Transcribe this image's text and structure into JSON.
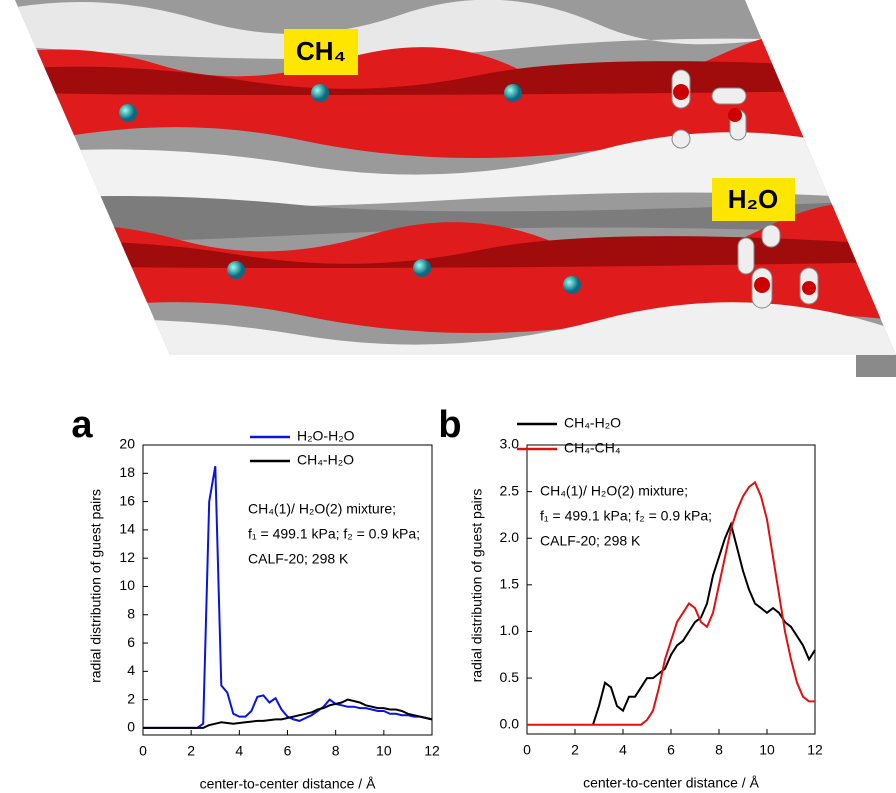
{
  "image_labels": [
    "CH₄",
    "H₂O"
  ],
  "chart_data": [
    {
      "type": "line",
      "panel_label": "a",
      "x_label": "center-to-center distance / Å",
      "y_label": "radial distribution of guest pairs",
      "annotations": [
        "CH₄(1)/ H₂O(2) mixture;",
        "f₁ = 499.1 kPa; f₂ = 0.9 kPa;",
        "CALF-20; 298 K"
      ],
      "xlim": [
        0,
        12
      ],
      "xticks": [
        0,
        2,
        4,
        6,
        8,
        10,
        12
      ],
      "ylim": [
        -0.5,
        20
      ],
      "yticks": [
        0,
        2,
        4,
        6,
        8,
        10,
        12,
        14,
        16,
        18,
        20
      ],
      "x": [
        0,
        0.25,
        0.5,
        0.75,
        1,
        1.25,
        1.5,
        1.75,
        2,
        2.25,
        2.5,
        2.75,
        3,
        3.25,
        3.5,
        3.75,
        4,
        4.25,
        4.5,
        4.75,
        5,
        5.25,
        5.5,
        5.75,
        6,
        6.25,
        6.5,
        6.75,
        7,
        7.25,
        7.5,
        7.75,
        8,
        8.25,
        8.5,
        8.75,
        9,
        9.25,
        9.5,
        9.75,
        10,
        10.25,
        10.5,
        10.75,
        11,
        11.25,
        11.5,
        11.75,
        12
      ],
      "series": [
        {
          "name": "H₂O-H₂O",
          "color": "#0a14e0",
          "values": [
            0,
            0,
            0,
            0,
            0,
            0,
            0,
            0,
            0,
            0,
            0.3,
            16,
            18.5,
            3,
            2.5,
            1,
            0.8,
            0.8,
            1.2,
            2.2,
            2.3,
            1.8,
            2.1,
            1.3,
            0.8,
            0.6,
            0.5,
            0.7,
            0.9,
            1.2,
            1.5,
            2.0,
            1.7,
            1.6,
            1.5,
            1.5,
            1.4,
            1.4,
            1.3,
            1.2,
            1.2,
            1.0,
            1.0,
            0.9,
            0.9,
            0.8,
            0.8,
            0.7,
            0.6
          ]
        },
        {
          "name": "CH₄-H₂O",
          "color": "#000000",
          "values": [
            0,
            0,
            0,
            0,
            0,
            0,
            0,
            0,
            0,
            0,
            0,
            0.2,
            0.3,
            0.4,
            0.35,
            0.3,
            0.35,
            0.4,
            0.45,
            0.5,
            0.5,
            0.55,
            0.6,
            0.6,
            0.7,
            0.8,
            0.9,
            1.0,
            1.1,
            1.3,
            1.4,
            1.6,
            1.7,
            1.8,
            2.0,
            1.9,
            1.8,
            1.6,
            1.5,
            1.4,
            1.4,
            1.3,
            1.3,
            1.2,
            1.0,
            0.9,
            0.8,
            0.7,
            0.6
          ]
        }
      ]
    },
    {
      "type": "line",
      "panel_label": "b",
      "x_label": "center-to-center distance / Å",
      "y_label": "radial distribution of guest pairs",
      "annotations": [
        "CH₄(1)/ H₂O(2) mixture;",
        "f₁ = 499.1 kPa; f₂ = 0.9 kPa;",
        "CALF-20; 298 K"
      ],
      "xlim": [
        0,
        12
      ],
      "xticks": [
        0,
        2,
        4,
        6,
        8,
        10,
        12
      ],
      "ylim": [
        -0.1,
        3.0
      ],
      "yticks": [
        {
          "value": 0,
          "label": "0.0"
        },
        0.5,
        {
          "value": 1,
          "label": "1.0"
        },
        1.5,
        {
          "value": 2,
          "label": "2.0"
        },
        2.5,
        {
          "value": 3,
          "label": "3.0"
        }
      ],
      "x": [
        0,
        0.25,
        0.5,
        0.75,
        1,
        1.25,
        1.5,
        1.75,
        2,
        2.25,
        2.5,
        2.75,
        3,
        3.25,
        3.5,
        3.75,
        4,
        4.25,
        4.5,
        4.75,
        5,
        5.25,
        5.5,
        5.75,
        6,
        6.25,
        6.5,
        6.75,
        7,
        7.25,
        7.5,
        7.75,
        8,
        8.25,
        8.5,
        8.75,
        9,
        9.25,
        9.5,
        9.75,
        10,
        10.25,
        10.5,
        10.75,
        11,
        11.25,
        11.5,
        11.75,
        12
      ],
      "series": [
        {
          "name": "CH₄-H₂O",
          "color": "#000000",
          "values": [
            null,
            null,
            null,
            null,
            null,
            null,
            null,
            null,
            null,
            null,
            null,
            0,
            0.2,
            0.45,
            0.4,
            0.2,
            0.15,
            0.3,
            0.3,
            0.4,
            0.5,
            0.5,
            0.55,
            0.6,
            0.75,
            0.85,
            0.9,
            1.0,
            1.1,
            1.15,
            1.3,
            1.6,
            1.8,
            2.0,
            2.15,
            1.9,
            1.65,
            1.45,
            1.3,
            1.25,
            1.2,
            1.25,
            1.2,
            1.1,
            1.05,
            0.95,
            0.85,
            0.7,
            0.8
          ]
        },
        {
          "name": "CH₄-CH₄",
          "color": "#e01010",
          "values": [
            0,
            0,
            0,
            0,
            0,
            0,
            0,
            0,
            0,
            0,
            0,
            0,
            0,
            0,
            0,
            0,
            0,
            0,
            0,
            0,
            0.05,
            0.15,
            0.4,
            0.7,
            0.9,
            1.1,
            1.2,
            1.3,
            1.25,
            1.1,
            1.05,
            1.2,
            1.5,
            1.8,
            2.1,
            2.3,
            2.45,
            2.55,
            2.6,
            2.45,
            2.2,
            1.8,
            1.4,
            1.0,
            0.7,
            0.45,
            0.3,
            0.25,
            0.25
          ]
        }
      ]
    }
  ]
}
